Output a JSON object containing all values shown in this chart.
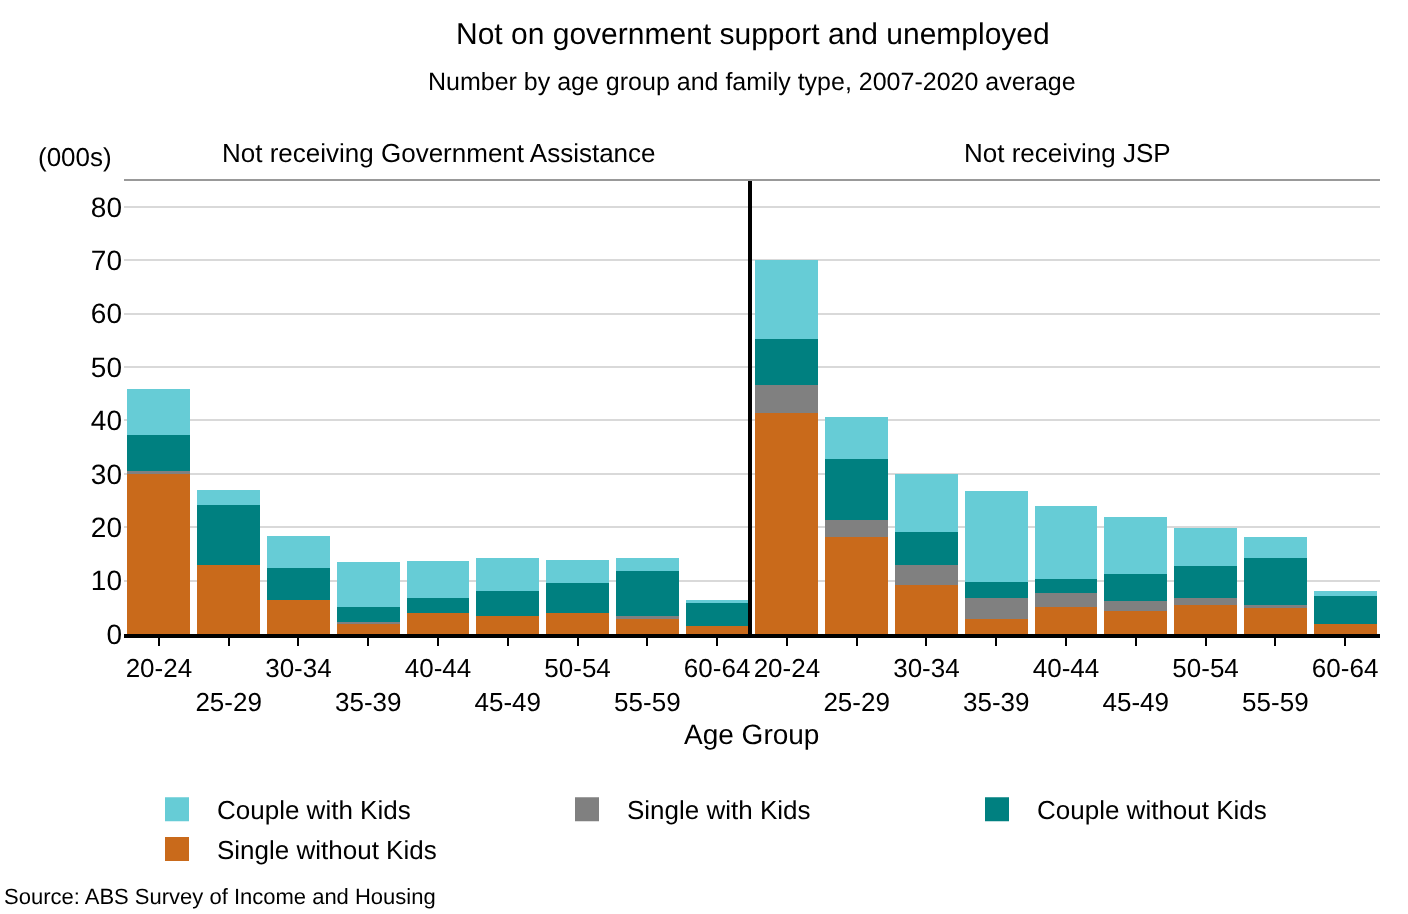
{
  "chart_data": [
    {
      "type": "bar",
      "title": "Not on government support and unemployed",
      "subtitle": "Number by age group and family type, 2007-2020 average",
      "xlabel": "Age Group",
      "ylabel": "(000s)",
      "annotations": [
        "Not receiving Government Assistance",
        "Source: ABS Survey of Income and Housing"
      ],
      "categories": [
        "20-24",
        "25-29",
        "30-34",
        "35-39",
        "40-44",
        "45-49",
        "50-54",
        "55-59",
        "60-64"
      ],
      "stacked": true,
      "ylim": [
        0,
        85
      ],
      "yticks": [
        0,
        10,
        20,
        30,
        40,
        50,
        60,
        70,
        80
      ],
      "grid": "y",
      "legend": "bottom",
      "series": [
        {
          "name": "Single without Kids",
          "color": "#c96a1b",
          "values": [
            30.0,
            13.0,
            6.3,
            1.9,
            3.9,
            3.3,
            3.9,
            2.8,
            1.5
          ]
        },
        {
          "name": "Single with Kids",
          "color": "#808080",
          "values": [
            0.6,
            0,
            0,
            0.4,
            0,
            0,
            0,
            0.5,
            0
          ]
        },
        {
          "name": "Couple without Kids",
          "color": "#008080",
          "values": [
            6.7,
            11.1,
            6.1,
            2.8,
            2.8,
            4.8,
            5.6,
            8.5,
            4.3
          ]
        },
        {
          "name": "Couple with Kids",
          "color": "#66ccd6",
          "values": [
            8.5,
            2.9,
            6.0,
            8.3,
            7.0,
            6.2,
            4.4,
            2.5,
            0.5
          ]
        }
      ]
    },
    {
      "type": "bar",
      "title": "Not receiving JSP",
      "categories": [
        "20-24",
        "25-29",
        "30-34",
        "35-39",
        "40-44",
        "45-49",
        "50-54",
        "55-59",
        "60-64"
      ],
      "stacked": true,
      "ylim": [
        0,
        85
      ],
      "yticks": [
        0,
        10,
        20,
        30,
        40,
        50,
        60,
        70,
        80
      ],
      "grid": "y",
      "tick_labels": "x",
      "series": [
        {
          "color": "#c96a1b",
          "values": [
            41.3,
            18.1,
            9.2,
            2.8,
            5.1,
            4.4,
            5.4,
            4.9,
            1.9
          ]
        },
        {
          "color": "#808080",
          "values": [
            5.3,
            3.2,
            3.8,
            3.9,
            2.6,
            1.7,
            1.3,
            0.5,
            0
          ]
        },
        {
          "color": "#008080",
          "values": [
            8.7,
            11.4,
            6.1,
            3.0,
            2.6,
            5.2,
            6.1,
            8.9,
            5.2
          ]
        },
        {
          "color": "#66ccd6",
          "values": [
            14.8,
            7.9,
            10.9,
            17.0,
            13.6,
            10.6,
            7.1,
            3.9,
            1.0
          ]
        }
      ]
    }
  ]
}
